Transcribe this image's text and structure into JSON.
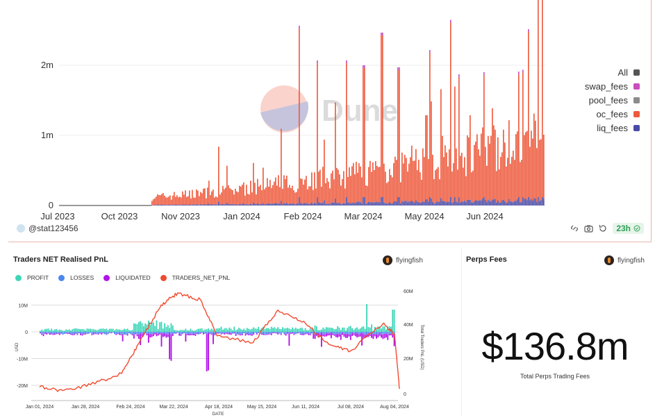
{
  "top_chart": {
    "watermark": "Dune",
    "author": "@stat123456",
    "refresh_badge": "23h",
    "legend": [
      {
        "name": "All",
        "color": "#555555"
      },
      {
        "name": "swap_fees",
        "color": "#c94fbd"
      },
      {
        "name": "pool_fees",
        "color": "#8c8c8c"
      },
      {
        "name": "oc_fees",
        "color": "#ee5a3d"
      },
      {
        "name": "liq_fees",
        "color": "#4b4ba6"
      }
    ]
  },
  "pnl_card": {
    "title": "Traders NET Realised PnL",
    "author": "flyingfish",
    "legend": [
      {
        "name": "PROFIT",
        "color": "#3fd6b8"
      },
      {
        "name": "LOSSES",
        "color": "#4a86f0"
      },
      {
        "name": "LIQUIDATED",
        "color": "#b312e8"
      },
      {
        "name": "TRADERS_NET_PNL",
        "color": "#f04a2f"
      }
    ]
  },
  "fees_card": {
    "title": "Perps Fees",
    "author": "flyingfish",
    "value": "$136.8m",
    "caption": "Total Perps Trading Fees"
  },
  "chart_data": [
    {
      "type": "bar",
      "title": "",
      "stacked": true,
      "x_ticks": [
        "Jul 2023",
        "Oct 2023",
        "Nov 2023",
        "Jan 2024",
        "Feb 2024",
        "Mar 2024",
        "May 2024",
        "Jun 2024"
      ],
      "y_ticks": [
        "0",
        "1m",
        "2m"
      ],
      "ylim": [
        0,
        2500000
      ],
      "series_names": [
        "oc_fees",
        "liq_fees",
        "pool_fees",
        "swap_fees"
      ],
      "daily_total_peaks": [
        {
          "date": "2024-03-03",
          "value": 2000000
        },
        {
          "date": "2024-03-12",
          "value": 2400000
        },
        {
          "date": "2024-05-25",
          "value": 1800000
        },
        {
          "date": "2024-07-10",
          "value": 2450000
        },
        {
          "date": "2024-07-18",
          "value": 2950000
        }
      ],
      "legend_position": "right"
    },
    {
      "type": "bar+line",
      "title": "Traders NET Realised PnL",
      "x_ticks": [
        "Jan 01, 2024",
        "Jan 28, 2024",
        "Feb 24, 2024",
        "Mar 22, 2024",
        "Apr 18, 2024",
        "May 15, 2024",
        "Jun 11, 2024",
        "Jul 08, 2024",
        "Aug 04, 2024"
      ],
      "xlabel": "DATE",
      "ylabel_left": "USD",
      "ylabel_right": "Total Traders PnL (USD)",
      "y_left_ticks": [
        "10M",
        "0",
        "-10M",
        "-20M"
      ],
      "y_right_ticks": [
        "60M",
        "40M",
        "20M",
        "0"
      ],
      "ylim_left": [
        -25000000,
        12000000
      ],
      "ylim_right": [
        0,
        60000000
      ],
      "traders_net_pnl_line": [
        {
          "x": "2024-01-01",
          "y": 5000000
        },
        {
          "x": "2024-01-15",
          "y": 3000000
        },
        {
          "x": "2024-02-01",
          "y": 6500000
        },
        {
          "x": "2024-02-20",
          "y": 13000000
        },
        {
          "x": "2024-03-01",
          "y": 30000000
        },
        {
          "x": "2024-03-15",
          "y": 53000000
        },
        {
          "x": "2024-03-25",
          "y": 60000000
        },
        {
          "x": "2024-04-08",
          "y": 56000000
        },
        {
          "x": "2024-04-18",
          "y": 35000000
        },
        {
          "x": "2024-05-10",
          "y": 31000000
        },
        {
          "x": "2024-05-25",
          "y": 50000000
        },
        {
          "x": "2024-06-11",
          "y": 42000000
        },
        {
          "x": "2024-06-25",
          "y": 30000000
        },
        {
          "x": "2024-07-08",
          "y": 26000000
        },
        {
          "x": "2024-07-28",
          "y": 42000000
        },
        {
          "x": "2024-08-04",
          "y": 36000000
        },
        {
          "x": "2024-08-07",
          "y": 4000000
        }
      ],
      "extreme_bars": [
        {
          "x": "2024-04-18",
          "series": "LIQUIDATED",
          "y": -14000000
        },
        {
          "x": "2024-07-15",
          "series": "PROFIT",
          "y": 10500000
        },
        {
          "x": "2024-08-06",
          "series": "LIQUIDATED",
          "y": -21000000
        }
      ],
      "legend_position": "top-left"
    }
  ]
}
